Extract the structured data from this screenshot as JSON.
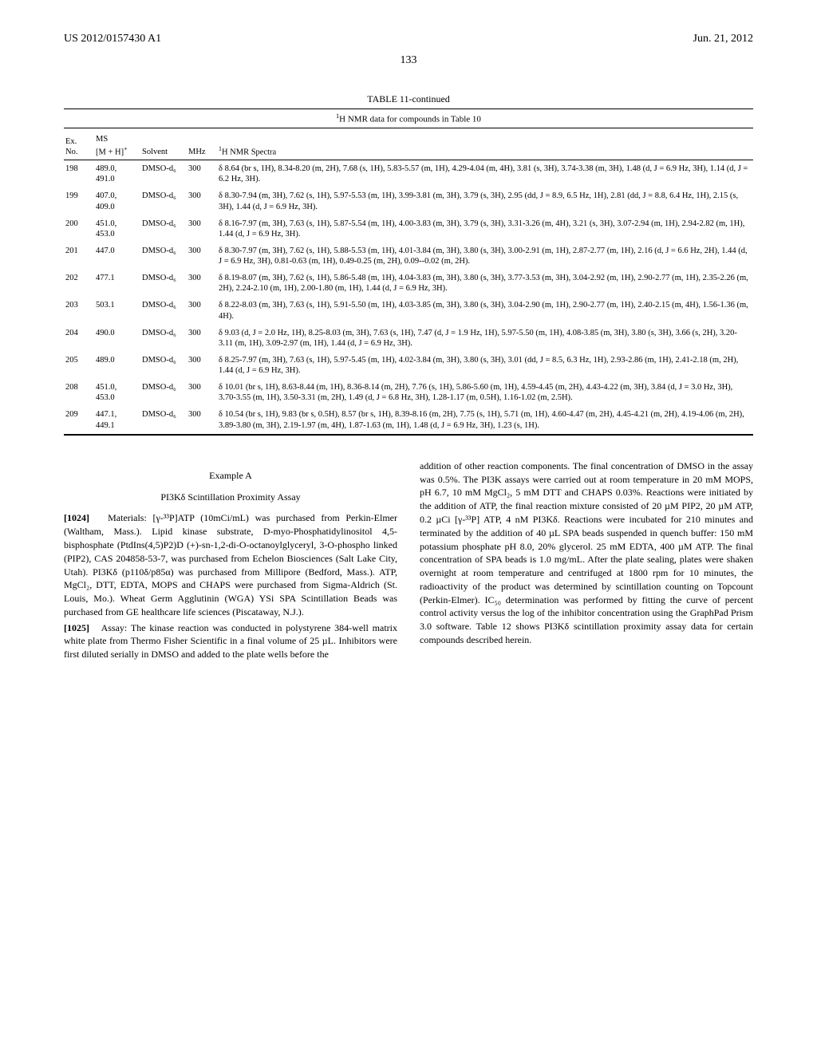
{
  "header": {
    "left": "US 2012/0157430 A1",
    "right": "Jun. 21, 2012"
  },
  "page_number": "133",
  "table": {
    "title": "TABLE 11-continued",
    "subtitle_prefix_sup": "1",
    "subtitle": "H NMR data for compounds in Table 10",
    "columns": {
      "exno_line1": "Ex.",
      "exno_line2": "No.",
      "ms_line1": "MS",
      "ms_line2": "[M + H]",
      "ms_sup": "+",
      "solvent": "Solvent",
      "mhz": "MHz",
      "spectra_sup": "1",
      "spectra": "H NMR Spectra"
    },
    "rows": [
      {
        "exno": "198",
        "ms": "489.0, 491.0",
        "solvent": "DMSO-d₆",
        "mhz": "300",
        "spectra": "δ 8.64 (br s, 1H), 8.34-8.20 (m, 2H), 7.68 (s, 1H), 5.83-5.57 (m, 1H), 4.29-4.04 (m, 4H), 3.81 (s, 3H), 3.74-3.38 (m, 3H), 1.48 (d, J = 6.9 Hz, 3H), 1.14 (d, J = 6.2 Hz, 3H)."
      },
      {
        "exno": "199",
        "ms": "407.0, 409.0",
        "solvent": "DMSO-d₆",
        "mhz": "300",
        "spectra": "δ 8.30-7.94 (m, 3H), 7.62 (s, 1H), 5.97-5.53 (m, 1H), 3.99-3.81 (m, 3H), 3.79 (s, 3H), 2.95 (dd, J = 8.9, 6.5 Hz, 1H), 2.81 (dd, J = 8.8, 6.4 Hz, 1H), 2.15 (s, 3H), 1.44 (d, J = 6.9 Hz, 3H)."
      },
      {
        "exno": "200",
        "ms": "451.0, 453.0",
        "solvent": "DMSO-d₆",
        "mhz": "300",
        "spectra": "δ 8.16-7.97 (m, 3H), 7.63 (s, 1H), 5.87-5.54 (m, 1H), 4.00-3.83 (m, 3H), 3.79 (s, 3H), 3.31-3.26 (m, 4H), 3.21 (s, 3H), 3.07-2.94 (m, 1H), 2.94-2.82 (m, 1H), 1.44 (d, J = 6.9 Hz, 3H)."
      },
      {
        "exno": "201",
        "ms": "447.0",
        "solvent": "DMSO-d₆",
        "mhz": "300",
        "spectra": "δ 8.30-7.97 (m, 3H), 7.62 (s, 1H), 5.88-5.53 (m, 1H), 4.01-3.84 (m, 3H), 3.80 (s, 3H), 3.00-2.91 (m, 1H), 2.87-2.77 (m, 1H), 2.16 (d, J = 6.6 Hz, 2H), 1.44 (d, J = 6.9 Hz, 3H), 0.81-0.63 (m, 1H), 0.49-0.25 (m, 2H), 0.09--0.02 (m, 2H)."
      },
      {
        "exno": "202",
        "ms": "477.1",
        "solvent": "DMSO-d₆",
        "mhz": "300",
        "spectra": "δ 8.19-8.07 (m, 3H), 7.62 (s, 1H), 5.86-5.48 (m, 1H), 4.04-3.83 (m, 3H), 3.80 (s, 3H), 3.77-3.53 (m, 3H), 3.04-2.92 (m, 1H), 2.90-2.77 (m, 1H), 2.35-2.26 (m, 2H), 2.24-2.10 (m, 1H), 2.00-1.80 (m, 1H), 1.44 (d, J = 6.9 Hz, 3H)."
      },
      {
        "exno": "203",
        "ms": "503.1",
        "solvent": "DMSO-d₆",
        "mhz": "300",
        "spectra": "δ 8.22-8.03 (m, 3H), 7.63 (s, 1H), 5.91-5.50 (m, 1H), 4.03-3.85 (m, 3H), 3.80 (s, 3H), 3.04-2.90 (m, 1H), 2.90-2.77 (m, 1H), 2.40-2.15 (m, 4H), 1.56-1.36 (m, 4H)."
      },
      {
        "exno": "204",
        "ms": "490.0",
        "solvent": "DMSO-d₆",
        "mhz": "300",
        "spectra": "δ 9.03 (d, J = 2.0 Hz, 1H), 8.25-8.03 (m, 3H), 7.63 (s, 1H), 7.47 (d, J = 1.9 Hz, 1H), 5.97-5.50 (m, 1H), 4.08-3.85 (m, 3H), 3.80 (s, 3H), 3.66 (s, 2H), 3.20-3.11 (m, 1H), 3.09-2.97 (m, 1H), 1.44 (d, J = 6.9 Hz, 3H)."
      },
      {
        "exno": "205",
        "ms": "489.0",
        "solvent": "DMSO-d₆",
        "mhz": "300",
        "spectra": "δ 8.25-7.97 (m, 3H), 7.63 (s, 1H), 5.97-5.45 (m, 1H), 4.02-3.84 (m, 3H), 3.80 (s, 3H), 3.01 (dd, J = 8.5, 6.3 Hz, 1H), 2.93-2.86 (m, 1H), 2.41-2.18 (m, 2H), 1.44 (d, J = 6.9 Hz, 3H)."
      },
      {
        "exno": "208",
        "ms": "451.0, 453.0",
        "solvent": "DMSO-d₆",
        "mhz": "300",
        "spectra": "δ 10.01 (br s, 1H), 8.63-8.44 (m, 1H), 8.36-8.14 (m, 2H), 7.76 (s, 1H), 5.86-5.60 (m, 1H), 4.59-4.45 (m, 2H), 4.43-4.22 (m, 3H), 3.84 (d, J = 3.0 Hz, 3H), 3.70-3.55 (m, 1H), 3.50-3.31 (m, 2H), 1.49 (d, J = 6.8 Hz, 3H), 1.28-1.17 (m, 0.5H), 1.16-1.02 (m, 2.5H)."
      },
      {
        "exno": "209",
        "ms": "447.1, 449.1",
        "solvent": "DMSO-d₆",
        "mhz": "300",
        "spectra": "δ 10.54 (br s, 1H), 9.83 (br s, 0.5H), 8.57 (br s, 1H), 8.39-8.16 (m, 2H), 7.75 (s, 1H), 5.71 (m, 1H), 4.60-4.47 (m, 2H), 4.45-4.21 (m, 2H), 4.19-4.06 (m, 2H), 3.89-3.80 (m, 3H), 2.19-1.97 (m, 4H), 1.87-1.63 (m, 1H), 1.48 (d, J = 6.9 Hz, 3H), 1.23 (s, 1H)."
      }
    ]
  },
  "body": {
    "example_heading": "Example A",
    "assay_heading": "PI3Kδ Scintillation Proximity Assay",
    "para1_num": "[1024]",
    "para1": "Materials: [γ-³³P]ATP (10mCi/mL) was purchased from Perkin-Elmer (Waltham, Mass.). Lipid kinase substrate, D-myo-Phosphatidylinositol 4,5-bisphosphate (PtdIns(4,5)P2)D (+)-sn-1,2-di-O-octanoylglyceryl, 3-O-phospho linked (PIP2), CAS 204858-53-7, was purchased from Echelon Biosciences (Salt Lake City, Utah). PI3Kδ (p110δ/p85α) was purchased from Millipore (Bedford, Mass.). ATP, MgCl₂, DTT, EDTA, MOPS and CHAPS were purchased from Sigma-Aldrich (St. Louis, Mo.). Wheat Germ Agglutinin (WGA) YSi SPA Scintillation Beads was purchased from GE healthcare life sciences (Piscataway, N.J.).",
    "para2_num": "[1025]",
    "para2": "Assay: The kinase reaction was conducted in polystyrene 384-well matrix white plate from Thermo Fisher Scientific in a final volume of 25 µL. Inhibitors were first diluted serially in DMSO and added to the plate wells before the",
    "para_right": "addition of other reaction components. The final concentration of DMSO in the assay was 0.5%. The PI3K assays were carried out at room temperature in 20 mM MOPS, pH 6.7, 10 mM MgCl₂, 5 mM DTT and CHAPS 0.03%. Reactions were initiated by the addition of ATP, the final reaction mixture consisted of 20 µM PIP2, 20 µM ATP, 0.2 µCi [γ-³³P] ATP, 4 nM PI3Kδ. Reactions were incubated for 210 minutes and terminated by the addition of 40 µL SPA beads suspended in quench buffer: 150 mM potassium phosphate pH 8.0, 20% glycerol. 25 mM EDTA, 400 µM ATP. The final concentration of SPA beads is 1.0 mg/mL. After the plate sealing, plates were shaken overnight at room temperature and centrifuged at 1800 rpm for 10 minutes, the radioactivity of the product was determined by scintillation counting on Topcount (Perkin-Elmer). IC₅₀ determination was performed by fitting the curve of percent control activity versus the log of the inhibitor concentration using the GraphPad Prism 3.0 software. Table 12 shows PI3Kδ scintillation proximity assay data for certain compounds described herein."
  }
}
